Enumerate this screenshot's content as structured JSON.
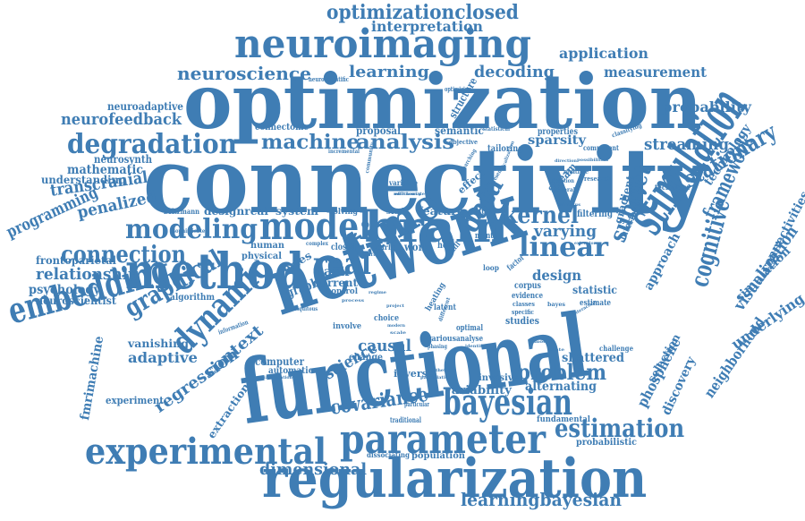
{
  "color": "#3f7db4",
  "words": [
    "functional",
    "connectivity",
    "optimization",
    "network",
    "stimulation",
    "method",
    "regularization",
    "brain",
    "neuroimaging",
    "parameter",
    "bayesian",
    "model",
    "experimental",
    "time",
    "embedding",
    "dynamic",
    "real",
    "modeling",
    "degradation",
    "estimation",
    "optimizationclosed",
    "connection",
    "graphical",
    "cognitive",
    "data",
    "linear",
    "kernel",
    "stationary",
    "framework",
    "problem",
    "learningbayesian",
    "neuroscience",
    "machine",
    "analysis",
    "measurement",
    "subject",
    "learning",
    "decoding",
    "visualization",
    "regression",
    "interpretation",
    "application",
    "neurofeedback",
    "probability",
    "streaming",
    "dimensional",
    "covariance",
    "varying",
    "transcranial",
    "penalized",
    "relationship",
    "programming",
    "adaptive",
    "context",
    "causal",
    "science",
    "neighborhood",
    "underlying",
    "simulation",
    "connectivities",
    "phosphene",
    "shattered",
    "alternating",
    "variability",
    "design",
    "approach",
    "gradient",
    "technology",
    "discovery",
    "selection",
    "fmrimachine",
    "extraction",
    "neuroadaptive",
    "mathematic",
    "neurosynth",
    "understanding",
    "frontoparietal",
    "psychology",
    "neuroscientist",
    "vanishing",
    "experiment",
    "designreal",
    "system",
    "feature",
    "current",
    "task",
    "graph",
    "series",
    "human",
    "physical",
    "computer",
    "automatic",
    "change",
    "inverse",
    "invasive",
    "studies",
    "stream",
    "statistic",
    "fundamental",
    "probabilistic",
    "population",
    "dissociating",
    "interface",
    "filtering",
    "sparsity",
    "proposal",
    "semantic",
    "connectome",
    "structure",
    "effect",
    "algorithm",
    "boltzmann",
    "tailoring",
    "properties",
    "component",
    "technique",
    "estimate",
    "corpus",
    "evidence",
    "challenge",
    "heat",
    "work",
    "closed",
    "solving",
    "study",
    "result",
    "monte",
    "carlo",
    "control",
    "choice",
    "heating",
    "various",
    "optimal",
    "latent",
    "analyse",
    "involve",
    "traditional",
    "particular",
    "optimizing",
    "neuroscientific",
    "incremental",
    "objective",
    "statistical",
    "classifying",
    "research",
    "function",
    "general",
    "multiple",
    "classes",
    "specific",
    "factor",
    "loop",
    "skill",
    "variable",
    "community",
    "complex",
    "information",
    "sophisticated",
    "ubiquitous",
    "bayes",
    "possibilities",
    "direction",
    "efficiency",
    "extension",
    "stimulus",
    "searching",
    "different",
    "localization",
    "presence",
    "synthetic",
    "parcellation",
    "project",
    "neural",
    "modern",
    "scale",
    "regime",
    "process",
    "phasing",
    "identify",
    "classification",
    "mode",
    "state",
    "interaction",
    "multivariate"
  ]
}
